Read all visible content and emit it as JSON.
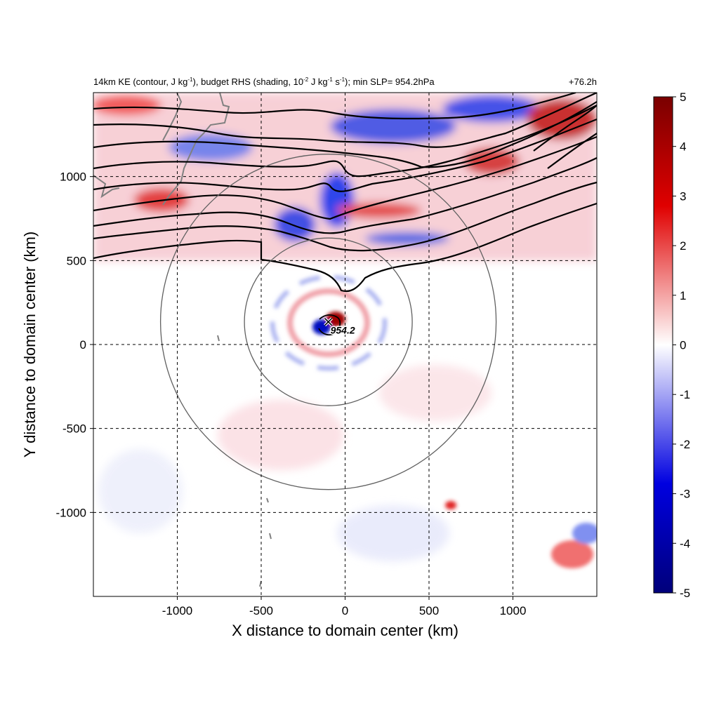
{
  "figure": {
    "title_left_main": "14km KE (contour, J kg",
    "title_left_sup1": "-1",
    "title_left_mid1": "), budget RHS (shading, 10",
    "title_left_sup2": "-2",
    "title_left_mid2": " J kg",
    "title_left_sup3": "-1",
    "title_left_mid3": " s",
    "title_left_sup4": "-1",
    "title_left_end": "); min SLP= 954.2hPa",
    "title_right": "+76.2h"
  },
  "chart_data": {
    "type": "heatmap",
    "xlabel": "X distance to domain center (km)",
    "ylabel": "Y distance to domain center (km)",
    "xlim": [
      -1500,
      1500
    ],
    "ylim": [
      -1500,
      1500
    ],
    "grid": true,
    "x_ticks": [
      -1000,
      -500,
      0,
      500,
      1000
    ],
    "x_tick_labels": [
      "-1000",
      "-500",
      "0",
      "500",
      "1000"
    ],
    "y_ticks": [
      -1000,
      -500,
      0,
      500,
      1000
    ],
    "y_tick_labels": [
      "-1000",
      "-500",
      "0",
      "500",
      "1000"
    ],
    "colorbar": {
      "range": [
        -5,
        5
      ],
      "ticks": [
        5,
        4,
        3,
        2,
        1,
        0,
        -1,
        -2,
        -3,
        -4,
        -5
      ],
      "tick_labels": [
        "5",
        "4",
        "3",
        "2",
        "1",
        "0",
        "-1",
        "-2",
        "-3",
        "-4",
        "-5"
      ],
      "colors": [
        "#00007a",
        "#0000ff",
        "#ffffff",
        "#ff0000",
        "#7a0000"
      ]
    },
    "storm_center": {
      "x": -100,
      "y": 135,
      "label": "954.2"
    },
    "range_circles_km": [
      500,
      1000
    ],
    "min_slp_hpa": 954.2,
    "lead_time": "+76.2h"
  }
}
